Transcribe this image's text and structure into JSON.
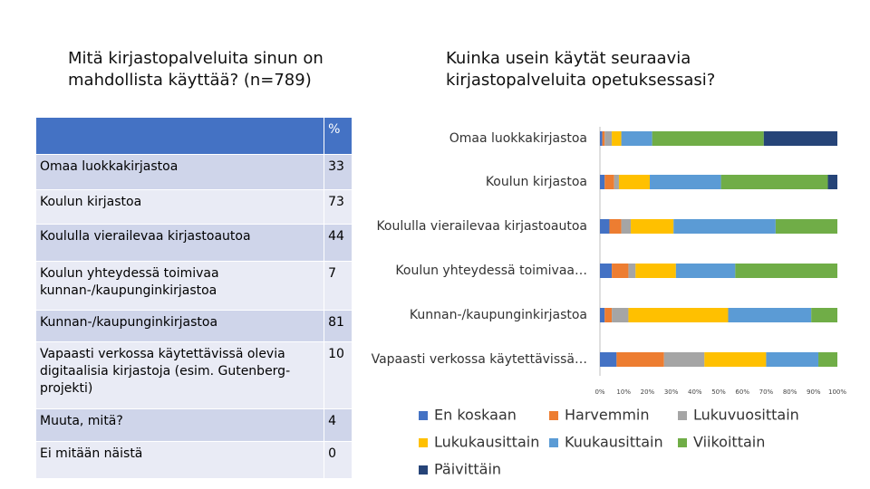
{
  "left_title": "Mitä kirjastopalveluita sinun on mahdollista käyttää? (n=789)",
  "table": {
    "header": [
      "%"
    ],
    "rows": [
      [
        "Omaa luokkakirjastoa",
        33
      ],
      [
        "Koulun kirjastoa",
        73
      ],
      [
        "Koululla vierailevaa kirjastoautoa",
        44
      ],
      [
        "Koulun yhteydessä toimivaa kunnan-/kaupunginkirjastoa",
        7
      ],
      [
        "Kunnan-/kaupunginkirjastoa",
        81
      ],
      [
        "Vapaasti verkossa käytettävissä olevia digitaalisia kirjastoja (esim. Gutenberg-projekti)",
        10
      ],
      [
        "Muuta, mitä?",
        4
      ],
      [
        "Ei mitään näistä",
        0
      ]
    ]
  },
  "chart_data": {
    "type": "stacked-barh",
    "title": "Kuinka usein käytät seuraavia kirjastopalveluita opetuksessasi?",
    "categories": [
      "Omaa luokkakirjastoa",
      "Koulun kirjastoa",
      "Koululla vierailevaa kirjastoautoa",
      "Koulun yhteydessä toimivaa…",
      "Kunnan-/kaupunginkirjastoa",
      "Vapaasti verkossa käytettävissä…"
    ],
    "series": [
      {
        "name": "En koskaan",
        "color": "#4472c4",
        "values": [
          1,
          2,
          4,
          5,
          2,
          7
        ]
      },
      {
        "name": "Harvemmin",
        "color": "#ed7d31",
        "values": [
          1,
          4,
          5,
          7,
          3,
          20
        ]
      },
      {
        "name": "Lukuvuosittain",
        "color": "#a5a5a5",
        "values": [
          3,
          2,
          4,
          3,
          7,
          17
        ]
      },
      {
        "name": "Lukukausittain",
        "color": "#ffc000",
        "values": [
          4,
          13,
          18,
          17,
          42,
          26
        ]
      },
      {
        "name": "Kuukausittain",
        "color": "#5b9bd5",
        "values": [
          13,
          30,
          43,
          25,
          35,
          22
        ]
      },
      {
        "name": "Viikoittain",
        "color": "#70ad47",
        "values": [
          47,
          45,
          26,
          43,
          11,
          8
        ]
      },
      {
        "name": "Päivittäin",
        "color": "#264478",
        "values": [
          31,
          4,
          0,
          0,
          0,
          0
        ]
      }
    ],
    "xlim": [
      0,
      100
    ],
    "xticks": [
      {
        "value": 0,
        "label": "0%"
      },
      {
        "value": 10,
        "label": "10%"
      },
      {
        "value": 20,
        "label": "20%"
      },
      {
        "value": 30,
        "label": "30%"
      },
      {
        "value": 40,
        "label": "40%"
      },
      {
        "value": 50,
        "label": "50%"
      },
      {
        "value": 60,
        "label": "60%"
      },
      {
        "value": 70,
        "label": "70%"
      },
      {
        "value": 80,
        "label": "80%"
      },
      {
        "value": 90,
        "label": "90%"
      },
      {
        "value": 100,
        "label": "100%"
      }
    ],
    "legend": "bottom"
  }
}
